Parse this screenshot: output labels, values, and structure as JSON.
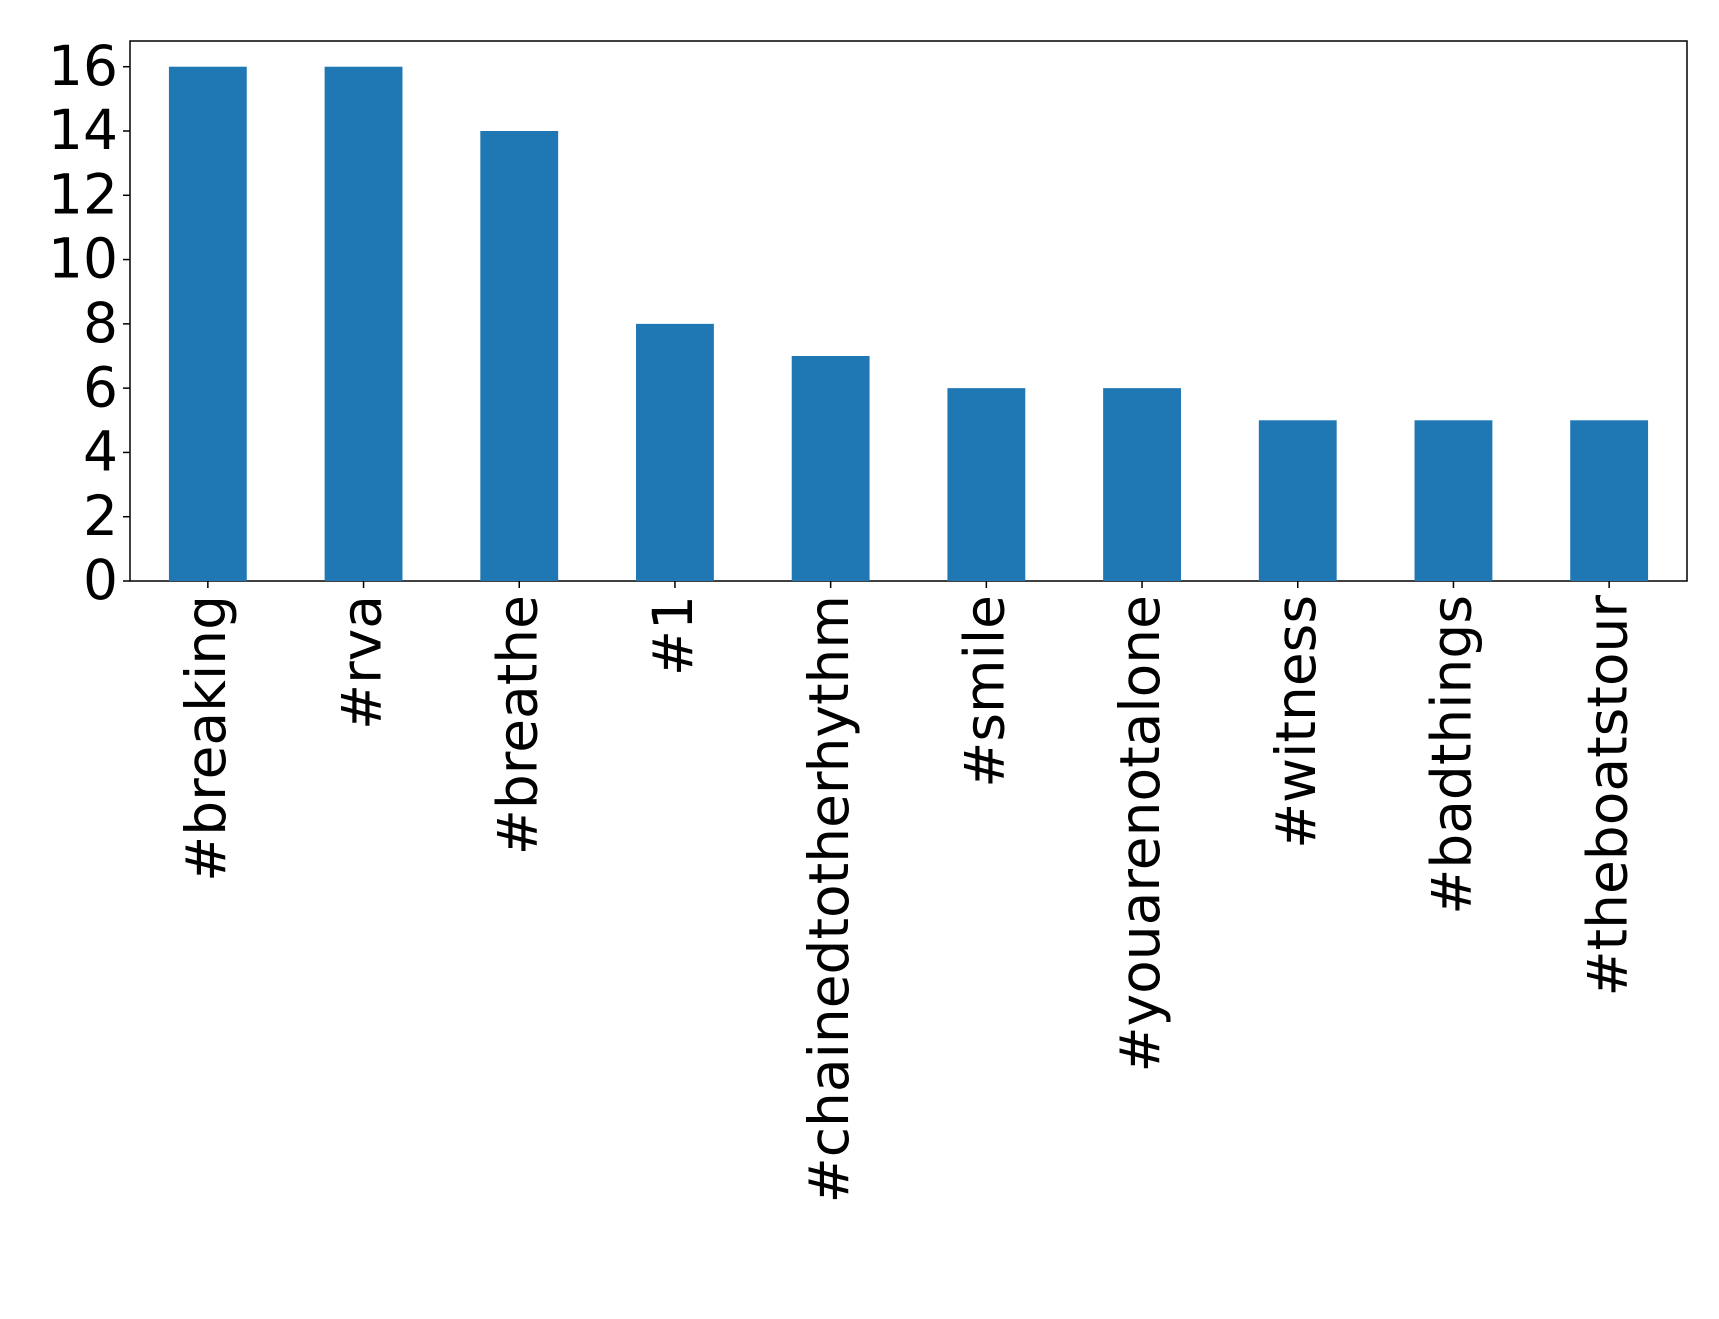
{
  "chart_data": {
    "type": "bar",
    "categories": [
      "#breaking",
      "#rva",
      "#breathe",
      "#1",
      "#chainedtotherhythm",
      "#smile",
      "#youarenotalone",
      "#witness",
      "#badthings",
      "#theboatstour"
    ],
    "values": [
      16,
      16,
      14,
      8,
      7,
      6,
      6,
      5,
      5,
      5
    ],
    "color": "#1f77b4",
    "ylim": [
      0,
      16.8
    ],
    "yticks": [
      0,
      2,
      4,
      6,
      8,
      10,
      12,
      14,
      16
    ],
    "grid": false
  }
}
